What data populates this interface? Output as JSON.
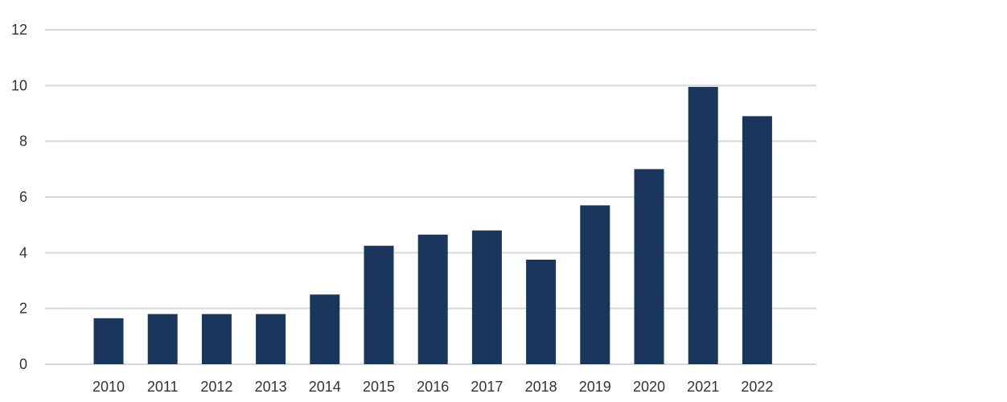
{
  "chart_data": {
    "type": "bar",
    "title": "",
    "xlabel": "",
    "ylabel": "",
    "categories": [
      "2010",
      "2011",
      "2012",
      "2013",
      "2014",
      "2015",
      "2016",
      "2017",
      "2018",
      "2019",
      "2020",
      "2021",
      "2022"
    ],
    "values": [
      1.65,
      1.8,
      1.8,
      1.8,
      2.5,
      4.25,
      4.65,
      4.8,
      3.75,
      5.7,
      7.0,
      9.95,
      8.9
    ],
    "ylim": [
      0,
      12
    ],
    "yticks": [
      "0",
      "2",
      "4",
      "6",
      "8",
      "10",
      "12"
    ],
    "grid": true,
    "legend": "none",
    "colors": {
      "bar": "#1b365d",
      "grid": "#d3d8dc",
      "text": "#333333",
      "background": "#ffffff"
    }
  }
}
